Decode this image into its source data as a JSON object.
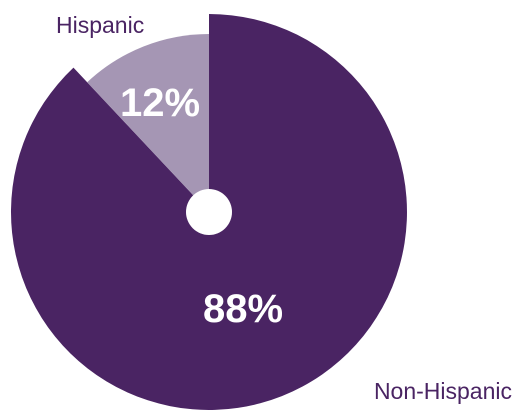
{
  "chart_data": {
    "type": "pie",
    "title": "",
    "categories": [
      "Non-Hispanic",
      "Hispanic"
    ],
    "values": [
      88,
      12
    ],
    "value_labels": [
      "88%",
      "12%"
    ],
    "colors": [
      "#4a2463",
      "#a596b4"
    ],
    "center_dot_color": "#ffffff",
    "label_color": "#4a2463",
    "value_label_color": "#ffffff"
  }
}
